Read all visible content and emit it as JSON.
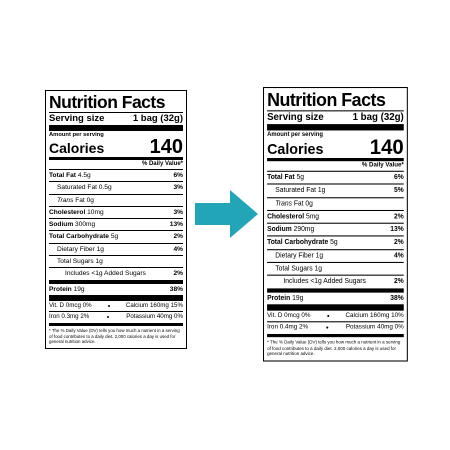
{
  "labels": [
    {
      "title": "Nutrition Facts",
      "serving_label": "Serving size",
      "serving_value": "1 bag (32g)",
      "amount_per_serving": "Amount per serving",
      "calories_label": "Calories",
      "calories_value": "140",
      "dv_header": "% Daily Value*",
      "nutrients": [
        {
          "label": "Total Fat",
          "amount": "4.5g",
          "dv": "6%",
          "sub": [
            {
              "label": "Saturated Fat",
              "amount": "0.5g",
              "dv": "3%"
            },
            {
              "label_em": "Trans",
              "label": "Fat",
              "amount": "0g"
            }
          ]
        },
        {
          "label": "Cholesterol",
          "amount": "10mg",
          "dv": "3%"
        },
        {
          "label": "Sodium",
          "amount": "300mg",
          "dv": "13%"
        },
        {
          "label": "Total Carbohydrate",
          "amount": "5g",
          "dv": "2%",
          "sub": [
            {
              "label": "Dietary Fiber",
              "amount": "1g",
              "dv": "4%"
            },
            {
              "label": "Total Sugars",
              "amount": "1g",
              "sub": [
                {
                  "label": "Includes <1g Added Sugars",
                  "dv": "2%"
                }
              ]
            }
          ]
        },
        {
          "label": "Protein",
          "amount": "19g",
          "dv": "38%"
        }
      ],
      "vitamins": [
        {
          "name": "Vit. D",
          "amount": "0mcg",
          "dv": "0%"
        },
        {
          "name": "Calcium",
          "amount": "160mg",
          "dv": "15%"
        },
        {
          "name": "Iron",
          "amount": "0.3mg",
          "dv": "2%"
        },
        {
          "name": "Potassium",
          "amount": "40mg",
          "dv": "0%"
        }
      ],
      "footnote": "* The % Daily Value (DV) tells you how much a nutrient in a serving of food contributes to a daily diet. 2,000 calories a day is used for general nutrition advice."
    },
    {
      "title": "Nutrition Facts",
      "serving_label": "Serving size",
      "serving_value": "1 bag (32g)",
      "amount_per_serving": "Amount per serving",
      "calories_label": "Calories",
      "calories_value": "140",
      "dv_header": "% Daily Value*",
      "nutrients": [
        {
          "label": "Total Fat",
          "amount": "5g",
          "dv": "6%",
          "sub": [
            {
              "label": "Saturated Fat",
              "amount": "1g",
              "dv": "5%"
            },
            {
              "label_em": "Trans",
              "label": "Fat",
              "amount": "0g"
            }
          ]
        },
        {
          "label": "Cholesterol",
          "amount": "5mg",
          "dv": "2%"
        },
        {
          "label": "Sodium",
          "amount": "290mg",
          "dv": "13%"
        },
        {
          "label": "Total Carbohydrate",
          "amount": "5g",
          "dv": "2%",
          "sub": [
            {
              "label": "Dietary Fiber",
              "amount": "1g",
              "dv": "4%"
            },
            {
              "label": "Total Sugars",
              "amount": "1g",
              "sub": [
                {
                  "label": "Includes <1g Added Sugars",
                  "dv": "2%"
                }
              ]
            }
          ]
        },
        {
          "label": "Protein",
          "amount": "19g",
          "dv": "38%"
        }
      ],
      "vitamins": [
        {
          "name": "Vit. D",
          "amount": "0mcg",
          "dv": "0%"
        },
        {
          "name": "Calcium",
          "amount": "160mg",
          "dv": "10%"
        },
        {
          "name": "Iron",
          "amount": "0.4mg",
          "dv": "2%"
        },
        {
          "name": "Potassium",
          "amount": "40mg",
          "dv": "0%"
        }
      ],
      "footnote": "* The % Daily Value (DV) tells you how much a nutrient in a serving of food contributes to a daily diet. 2,000 calories a day is used for general nutrition advice."
    }
  ]
}
